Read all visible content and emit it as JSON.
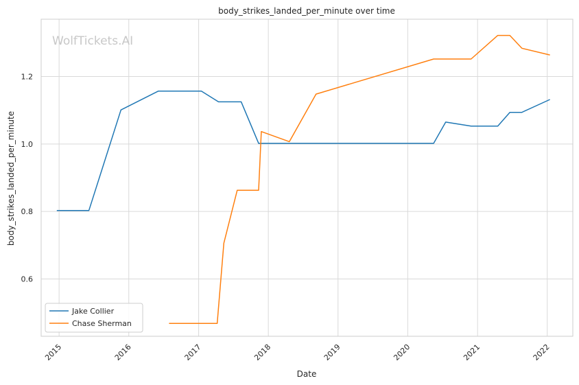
{
  "chart_data": {
    "type": "line",
    "title": "body_strikes_landed_per_minute over time",
    "xlabel": "Date",
    "ylabel": "body_strikes_landed_per_minute",
    "watermark": "WolfTickets.AI",
    "x_ticks": [
      "2015",
      "2016",
      "2017",
      "2018",
      "2019",
      "2020",
      "2021",
      "2022"
    ],
    "y_ticks": [
      "0.6",
      "0.8",
      "1.0",
      "1.2"
    ],
    "y_tick_values": [
      0.6,
      0.8,
      1.0,
      1.2
    ],
    "ylim": [
      0.43,
      1.37
    ],
    "xlim": [
      "2014-09-29",
      "2022-05-15"
    ],
    "grid": true,
    "legend_position": "lower-left",
    "series": [
      {
        "name": "Jake Collier",
        "color": "#1f77b4",
        "points": [
          [
            "2014-12-20",
            0.803
          ],
          [
            "2015-06-06",
            0.803
          ],
          [
            "2015-11-21",
            1.101
          ],
          [
            "2016-06-04",
            1.157
          ],
          [
            "2017-01-15",
            1.157
          ],
          [
            "2017-04-15",
            1.125
          ],
          [
            "2017-08-12",
            1.125
          ],
          [
            "2017-11-11",
            1.002
          ],
          [
            "2020-05-16",
            1.002
          ],
          [
            "2020-07-18",
            1.065
          ],
          [
            "2020-11-28",
            1.053
          ],
          [
            "2021-04-17",
            1.053
          ],
          [
            "2021-06-19",
            1.094
          ],
          [
            "2021-08-21",
            1.094
          ],
          [
            "2022-01-15",
            1.132
          ]
        ]
      },
      {
        "name": "Chase Sherman",
        "color": "#ff7f0e",
        "points": [
          [
            "2016-07-30",
            0.468
          ],
          [
            "2017-04-08",
            0.468
          ],
          [
            "2017-05-13",
            0.706
          ],
          [
            "2017-07-22",
            0.863
          ],
          [
            "2017-11-11",
            0.863
          ],
          [
            "2017-11-25",
            1.037
          ],
          [
            "2018-04-21",
            1.007
          ],
          [
            "2018-09-08",
            1.148
          ],
          [
            "2020-05-16",
            1.252
          ],
          [
            "2020-11-28",
            1.252
          ],
          [
            "2021-04-17",
            1.322
          ],
          [
            "2021-06-19",
            1.322
          ],
          [
            "2021-08-21",
            1.284
          ],
          [
            "2022-01-15",
            1.264
          ]
        ]
      }
    ]
  }
}
